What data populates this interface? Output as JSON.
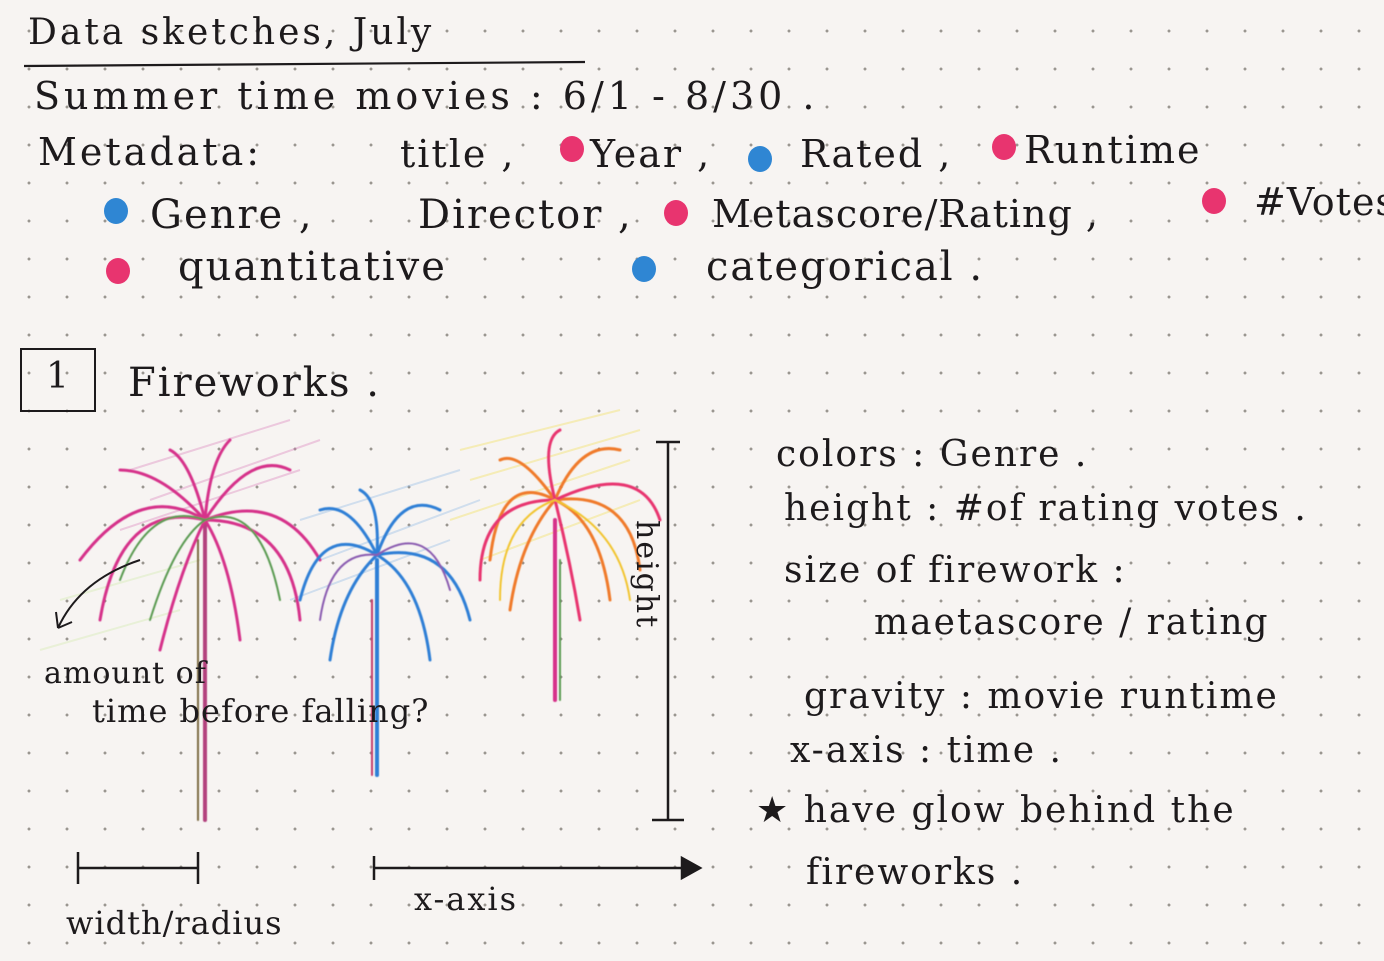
{
  "header": {
    "title": "Data sketches, July",
    "subtitle": "Summer time movies : 6/1 - 8/30 ."
  },
  "metadata": {
    "label": "Metadata:",
    "fields": [
      {
        "text": "title ,",
        "marker": "none"
      },
      {
        "text": "Year ,",
        "marker": "quantitative"
      },
      {
        "text": "Rated ,",
        "marker": "categorical"
      },
      {
        "text": "Runtime",
        "marker": "quantitative"
      },
      {
        "text": "Genre ,",
        "marker": "categorical"
      },
      {
        "text": "Director ,",
        "marker": "none"
      },
      {
        "text": "Metascore/Rating ,",
        "marker": "quantitative"
      },
      {
        "text": "#Votes",
        "marker": "quantitative"
      }
    ],
    "legend": {
      "quantitative": "quantitative",
      "categorical": "categorical ."
    },
    "colors": {
      "quantitative": "#e8346f",
      "categorical": "#2f86d3"
    }
  },
  "section": {
    "number": "1",
    "title": "Fireworks ."
  },
  "sketch": {
    "height_label": "height",
    "fall_annotation_line1": "amount of",
    "fall_annotation_line2": "time before falling?",
    "width_label": "width/radius",
    "xaxis_label": "x-axis",
    "firework_colors": [
      "#d6338a",
      "#2f7fd6",
      "#f07a2a"
    ]
  },
  "notes": [
    "colors : Genre .",
    "height : #of rating votes .",
    "size of firework :",
    "maetascore / rating",
    "gravity : movie runtime",
    "x-axis : time .",
    "★ have glow behind the",
    "fireworks ."
  ]
}
